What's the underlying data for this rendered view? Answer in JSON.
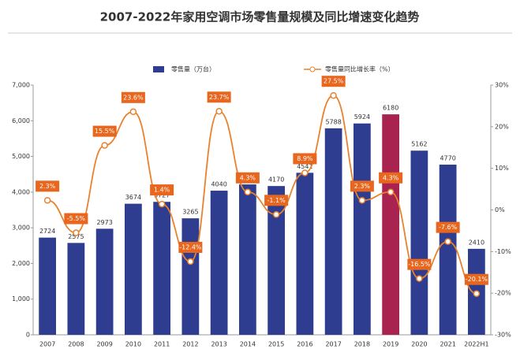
{
  "chart_data": {
    "type": "bar",
    "title": "2007-2022年家用空调市场零售量规模及同比增速变化趋势",
    "categories": [
      "2007",
      "2008",
      "2009",
      "2010",
      "2011",
      "2012",
      "2013",
      "2014",
      "2015",
      "2016",
      "2017",
      "2018",
      "2019",
      "2020",
      "2021",
      "2022H1"
    ],
    "series": [
      {
        "name": "零售量（万台）",
        "type": "bar",
        "color": "#2e3d8f",
        "bar_colors": [
          "#2e3d8f",
          "#2e3d8f",
          "#2e3d8f",
          "#2e3d8f",
          "#2e3d8f",
          "#2e3d8f",
          "#2e3d8f",
          "#2e3d8f",
          "#2e3d8f",
          "#2e3d8f",
          "#2e3d8f",
          "#2e3d8f",
          "#a8234f",
          "#2e3d8f",
          "#2e3d8f",
          "#2e3d8f"
        ],
        "values": [
          2724,
          2575,
          2973,
          3674,
          3727,
          3265,
          4040,
          4215,
          4170,
          4541,
          5788,
          5924,
          6180,
          5162,
          4770,
          2410
        ]
      },
      {
        "name": "零售量同比增长率（%）",
        "type": "line",
        "axis": "y2",
        "color": "#e8822e",
        "values": [
          2.3,
          -5.5,
          15.5,
          23.6,
          1.4,
          -12.4,
          23.7,
          4.3,
          -1.1,
          8.9,
          27.5,
          2.3,
          4.3,
          -16.5,
          -7.6,
          -20.1
        ],
        "value_labels": [
          "2.3%",
          "-5.5%",
          "15.5%",
          "23.6%",
          "1.4%",
          "-12.4%",
          "23.7%",
          "4.3%",
          "-1.1%",
          "8.9%",
          "27.5%",
          "2.3%",
          "4.3%",
          "-16.5%",
          "-7.6%",
          "-20.1%"
        ]
      }
    ],
    "ylim": [
      0,
      7000
    ],
    "yticks": [
      0,
      {
        "value": 1000,
        "label": "1,000"
      },
      {
        "value": 2000,
        "label": "2,000"
      },
      {
        "value": 3000,
        "label": "3,000"
      },
      {
        "value": 4000,
        "label": "4,000"
      },
      {
        "value": 5000,
        "label": "5,000"
      },
      {
        "value": 6000,
        "label": "6,000"
      },
      {
        "value": 7000,
        "label": "7,000"
      }
    ],
    "y2lim": [
      -30,
      30
    ],
    "y2ticks": [
      {
        "value": -30,
        "label": "-30%"
      },
      {
        "value": -20,
        "label": "-20%"
      },
      {
        "value": -10,
        "label": "-10%"
      },
      {
        "value": 0,
        "label": "0%"
      },
      {
        "value": 10,
        "label": "10%"
      },
      {
        "value": 20,
        "label": "20%"
      },
      {
        "value": 30,
        "label": "30%"
      }
    ],
    "grid": false
  }
}
